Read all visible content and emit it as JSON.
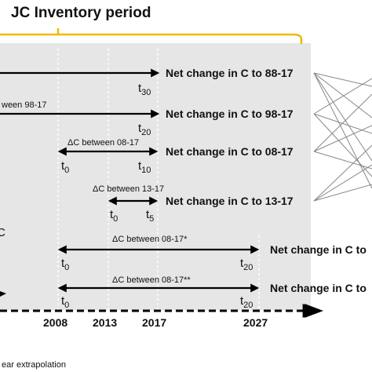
{
  "header": {
    "title": "JC Inventory period"
  },
  "rows": [
    {
      "net_change": "Net change in C to 88-17",
      "left_label": "",
      "left_sub": "",
      "right_label": "t",
      "right_sub": "30",
      "between": ""
    },
    {
      "net_change": "Net change in C to 98-17",
      "left_label": "",
      "left_sub": "",
      "right_label": "t",
      "right_sub": "20",
      "between": "ween  98-17"
    },
    {
      "net_change": "Net change in C to 08-17",
      "left_label": "t",
      "left_sub": "0",
      "right_label": "t",
      "right_sub": "10",
      "between": "ΔC between  08-17"
    },
    {
      "net_change": "Net change in C to 13-17",
      "left_label": "t",
      "left_sub": "0",
      "right_label": "t",
      "right_sub": "5",
      "between": "ΔC between  13-17"
    },
    {
      "net_change": "Net change in C to",
      "left_label": "t",
      "left_sub": "0",
      "right_label": "t",
      "right_sub": "20",
      "between": "ΔC between  08-17*"
    },
    {
      "net_change": "Net change in C to",
      "left_label": "t",
      "left_sub": "0",
      "right_label": "t",
      "right_sub": "20",
      "between": "ΔC between  08-17**"
    }
  ],
  "timeline": {
    "years": [
      "2008",
      "2013",
      "2017",
      "2027"
    ]
  },
  "left_edge_fragment": "C",
  "footnote": "ear extrapolation",
  "colors": {
    "bracket": "#f2b705",
    "panel": "#e6e6e6",
    "arrow": "#000000",
    "fan_lines": "#888888"
  }
}
